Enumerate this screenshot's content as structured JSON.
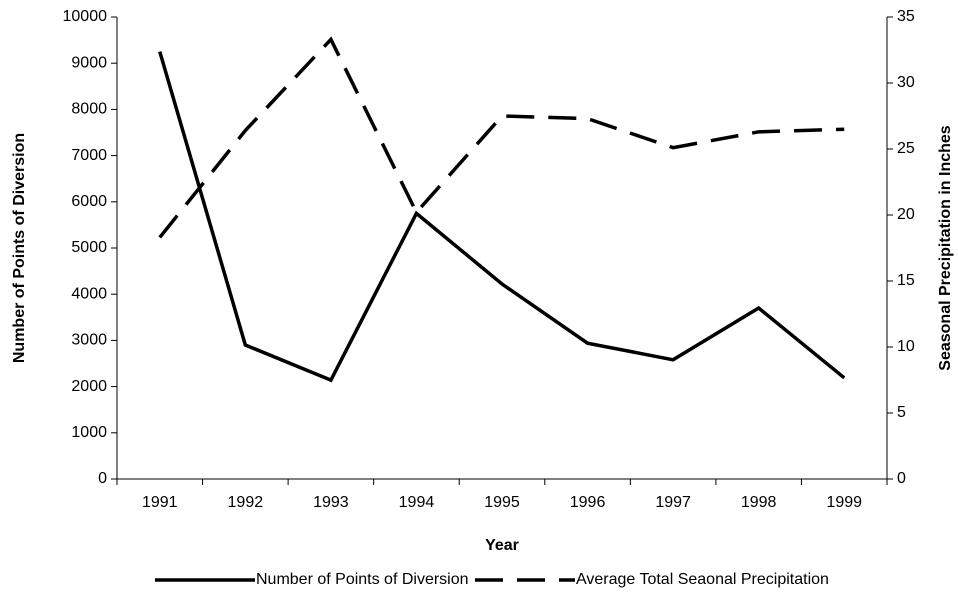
{
  "chart_data": {
    "type": "line",
    "x_label": "Year",
    "y_label": "Number of Points of Diversion",
    "y2_label": "Seasonal Precipitation in Inches",
    "categories": [
      "1991",
      "1992",
      "1993",
      "1994",
      "1995",
      "1996",
      "1997",
      "1998",
      "1999"
    ],
    "series": [
      {
        "name": "Number of Points of Diversion",
        "color": "#000000",
        "line_style": "solid",
        "values": [
          9250,
          2900,
          2140,
          5750,
          4220,
          2940,
          2580,
          3700,
          2190
        ]
      },
      {
        "name": "Average Total Seaonal Precipitation",
        "color": "#000000",
        "line_style": "dashed",
        "axis": "y2",
        "values": [
          18.3,
          26.4,
          33.3,
          20.2,
          27.5,
          27.3,
          25.1,
          26.3,
          26.5
        ]
      }
    ],
    "ylim": [
      0,
      10000
    ],
    "yticks": [
      0,
      1000,
      2000,
      3000,
      4000,
      5000,
      6000,
      7000,
      8000,
      9000,
      10000
    ],
    "y2lim": [
      0,
      35
    ],
    "y2ticks": [
      0,
      5,
      10,
      15,
      20,
      25,
      30,
      35
    ],
    "grid": false,
    "legend": "bottom"
  }
}
